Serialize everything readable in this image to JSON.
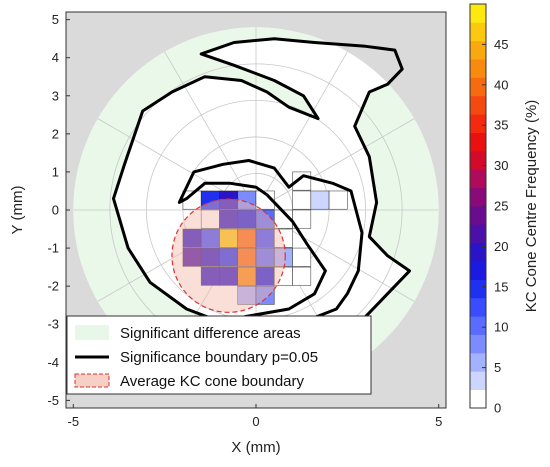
{
  "chart_data": {
    "type": "heatmap",
    "xlabel": "X (mm)",
    "ylabel": "Y (mm)",
    "xlim": [
      -5.2,
      5.2
    ],
    "ylim": [
      -5.2,
      5.2
    ],
    "x_ticks": [
      "-5",
      "0",
      "5"
    ],
    "y_ticks": [
      "5",
      "4",
      "3",
      "2",
      "1",
      "0",
      "-1",
      "-2",
      "-3",
      "-4",
      "-5"
    ],
    "polar_grid": true,
    "polar_grid_radii_mm": [
      1,
      2,
      3,
      4
    ],
    "map_radius_mm": 5,
    "colorbar": {
      "label": "KC Cone Centre Frequency (%)",
      "range": [
        0,
        50
      ],
      "ticks": [
        "45",
        "40",
        "35",
        "30",
        "25",
        "20",
        "15",
        "10",
        "5",
        "0"
      ],
      "colors": [
        "#ffffff",
        "#cdd6ff",
        "#a3b1ff",
        "#7a8cff",
        "#5a6bff",
        "#3a4cff",
        "#2030f0",
        "#1a1ae0",
        "#2a14c8",
        "#4a10a8",
        "#6a0c90",
        "#8a0a7a",
        "#b00a5a",
        "#d40a2a",
        "#ea1010",
        "#f42a10",
        "#f44a10",
        "#f66a10",
        "#f88a10",
        "#faa810",
        "#fcc810",
        "#fde810"
      ]
    },
    "cells": [
      {
        "x": -1.75,
        "y": 0.25,
        "v": 0
      },
      {
        "x": -1.25,
        "y": 0.25,
        "v": 14
      },
      {
        "x": -0.75,
        "y": 0.25,
        "v": 18
      },
      {
        "x": -0.25,
        "y": 0.25,
        "v": 8
      },
      {
        "x": 0.25,
        "y": 0.25,
        "v": 0
      },
      {
        "x": 1.25,
        "y": 0.25,
        "v": 0
      },
      {
        "x": 1.25,
        "y": 0.75,
        "v": 0
      },
      {
        "x": 1.75,
        "y": 0.25,
        "v": 3
      },
      {
        "x": 2.25,
        "y": 0.25,
        "v": 0
      },
      {
        "x": -1.25,
        "y": -0.25,
        "v": 0
      },
      {
        "x": -0.75,
        "y": -0.25,
        "v": 20
      },
      {
        "x": -0.25,
        "y": -0.25,
        "v": 16
      },
      {
        "x": 0.25,
        "y": -0.25,
        "v": 9
      },
      {
        "x": 0.75,
        "y": -0.25,
        "v": 0
      },
      {
        "x": 1.25,
        "y": -0.25,
        "v": 0
      },
      {
        "x": -1.75,
        "y": -0.75,
        "v": 18
      },
      {
        "x": -1.25,
        "y": -0.75,
        "v": 12
      },
      {
        "x": -0.75,
        "y": -0.75,
        "v": 48
      },
      {
        "x": -0.25,
        "y": -0.75,
        "v": 40
      },
      {
        "x": 0.25,
        "y": -0.75,
        "v": 12
      },
      {
        "x": 0.75,
        "y": -0.75,
        "v": 0
      },
      {
        "x": -1.75,
        "y": -1.25,
        "v": 22
      },
      {
        "x": -1.25,
        "y": -1.25,
        "v": 20
      },
      {
        "x": -0.75,
        "y": -1.25,
        "v": 14
      },
      {
        "x": -0.25,
        "y": -1.25,
        "v": 41
      },
      {
        "x": 0.25,
        "y": -1.25,
        "v": 10
      },
      {
        "x": 0.75,
        "y": -1.25,
        "v": 4
      },
      {
        "x": 1.25,
        "y": -1.25,
        "v": 0
      },
      {
        "x": -1.25,
        "y": -1.75,
        "v": 20
      },
      {
        "x": -0.75,
        "y": -1.75,
        "v": 20
      },
      {
        "x": -0.25,
        "y": -1.75,
        "v": 42
      },
      {
        "x": 0.25,
        "y": -1.75,
        "v": 16
      },
      {
        "x": 0.75,
        "y": -1.75,
        "v": 0
      },
      {
        "x": 1.25,
        "y": -1.75,
        "v": 0
      },
      {
        "x": -0.25,
        "y": -2.25,
        "v": 4
      },
      {
        "x": 0.25,
        "y": -2.25,
        "v": 6
      }
    ],
    "average_cone_boundary": {
      "cx": -0.75,
      "cy": -1.2,
      "r": 1.55
    },
    "significance_boundary": [
      [
        -2.1,
        0.2
      ],
      [
        -1.7,
        1.0
      ],
      [
        -0.9,
        1.2
      ],
      [
        -0.2,
        1.3
      ],
      [
        0.5,
        1.1
      ],
      [
        0.9,
        0.6
      ],
      [
        1.3,
        0.9
      ],
      [
        2.1,
        0.7
      ],
      [
        2.6,
        0.5
      ],
      [
        2.9,
        -0.6
      ],
      [
        2.8,
        -1.6
      ],
      [
        2.5,
        -2.2
      ],
      [
        2.2,
        -2.6
      ],
      [
        1.4,
        -2.9
      ],
      [
        0.2,
        -3.0
      ],
      [
        -0.8,
        -3.0
      ],
      [
        -1.9,
        -2.6
      ],
      [
        -2.9,
        -1.9
      ],
      [
        -3.5,
        -1.0
      ],
      [
        -3.9,
        0.3
      ],
      [
        -3.6,
        1.2
      ],
      [
        -3.1,
        2.6
      ],
      [
        -2.3,
        3.1
      ],
      [
        -1.4,
        3.5
      ],
      [
        -0.4,
        3.4
      ],
      [
        0.3,
        3.1
      ],
      [
        0.9,
        2.7
      ],
      [
        1.7,
        2.4
      ],
      [
        1.3,
        3.0
      ],
      [
        0.5,
        3.4
      ],
      [
        -0.6,
        3.8
      ],
      [
        -1.5,
        4.1
      ],
      [
        -0.6,
        4.4
      ],
      [
        0.5,
        4.5
      ],
      [
        1.6,
        4.4
      ],
      [
        3.0,
        4.3
      ],
      [
        3.8,
        4.2
      ],
      [
        4.0,
        3.7
      ],
      [
        3.6,
        3.3
      ],
      [
        3.1,
        3.1
      ],
      [
        2.7,
        2.2
      ],
      [
        3.1,
        1.4
      ],
      [
        3.3,
        0.2
      ],
      [
        3.1,
        -0.7
      ],
      [
        3.6,
        -1.2
      ],
      [
        4.2,
        -1.6
      ],
      [
        3.4,
        -2.4
      ],
      [
        2.8,
        -3.0
      ],
      [
        1.7,
        -3.4
      ],
      [
        0.4,
        -3.3
      ],
      [
        -0.3,
        -2.8
      ],
      [
        0.9,
        -2.6
      ],
      [
        1.6,
        -2.2
      ],
      [
        1.9,
        -1.6
      ],
      [
        1.4,
        -0.9
      ],
      [
        1.0,
        -0.3
      ],
      [
        0.6,
        0.1
      ],
      [
        0.3,
        0.4
      ],
      [
        0.0,
        0.6
      ],
      [
        -0.7,
        0.7
      ],
      [
        -1.4,
        0.7
      ],
      [
        -1.9,
        0.3
      ],
      [
        -2.1,
        0.2
      ]
    ],
    "legend": [
      {
        "label": "Significant difference areas"
      },
      {
        "label": "Significance boundary p=0.05"
      },
      {
        "label": "Average KC cone boundary"
      }
    ]
  }
}
